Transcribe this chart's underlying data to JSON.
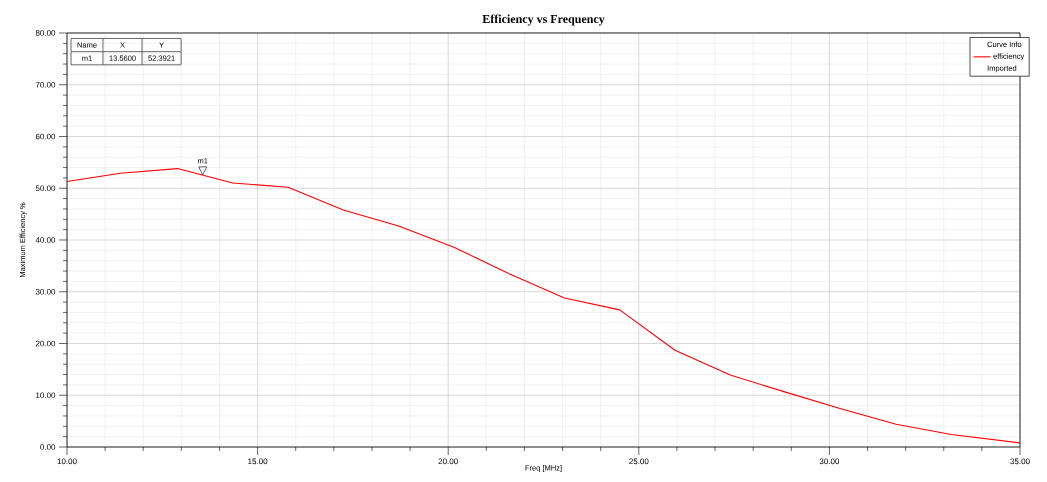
{
  "chart_data": {
    "type": "line",
    "title": "Efficiency vs Frequency",
    "xlabel": "Freq [MHz]",
    "ylabel": "Maximum Efficiency %",
    "legend_title": "Curve Info",
    "xlim": [
      10,
      35
    ],
    "ylim": [
      0,
      80
    ],
    "xticks": [
      {
        "value": 10,
        "label": "10.00"
      },
      {
        "value": 15,
        "label": "15.00"
      },
      {
        "value": 20,
        "label": "20.00"
      },
      {
        "value": 25,
        "label": "25.00"
      },
      {
        "value": 30,
        "label": "30.00"
      },
      {
        "value": 35,
        "label": "35.00"
      }
    ],
    "yticks": [
      {
        "value": 0,
        "label": "0.00"
      },
      {
        "value": 10,
        "label": "10.00"
      },
      {
        "value": 20,
        "label": "20.00"
      },
      {
        "value": 30,
        "label": "30.00"
      },
      {
        "value": 40,
        "label": "40.00"
      },
      {
        "value": 50,
        "label": "50.00"
      },
      {
        "value": 60,
        "label": "60.00"
      },
      {
        "value": 70,
        "label": "70.00"
      },
      {
        "value": 80,
        "label": "80.00"
      }
    ],
    "grid": true,
    "legend": "top right",
    "marker": "none",
    "line_style": "solid",
    "series": [
      {
        "name": "efficiency",
        "color": "#ff0000",
        "x": [
          10,
          11.4,
          12.9,
          14.35,
          15.8,
          17.25,
          18.7,
          20.15,
          21.6,
          23.05,
          24.5,
          25.95,
          27.4,
          28.85,
          30.3,
          31.75,
          33.2,
          35
        ],
        "values": [
          51.3,
          52.9,
          53.8,
          51.0,
          50.2,
          45.8,
          42.7,
          38.6,
          33.5,
          28.8,
          26.5,
          18.7,
          13.9,
          10.6,
          7.4,
          4.4,
          2.4,
          0.8
        ]
      }
    ],
    "annotations": [
      {
        "text": "m1",
        "x": 13.56,
        "y": 52.3921
      },
      "Name",
      "X",
      "Y",
      "m1",
      "13.5600",
      "52.3921",
      "Imported"
    ]
  }
}
